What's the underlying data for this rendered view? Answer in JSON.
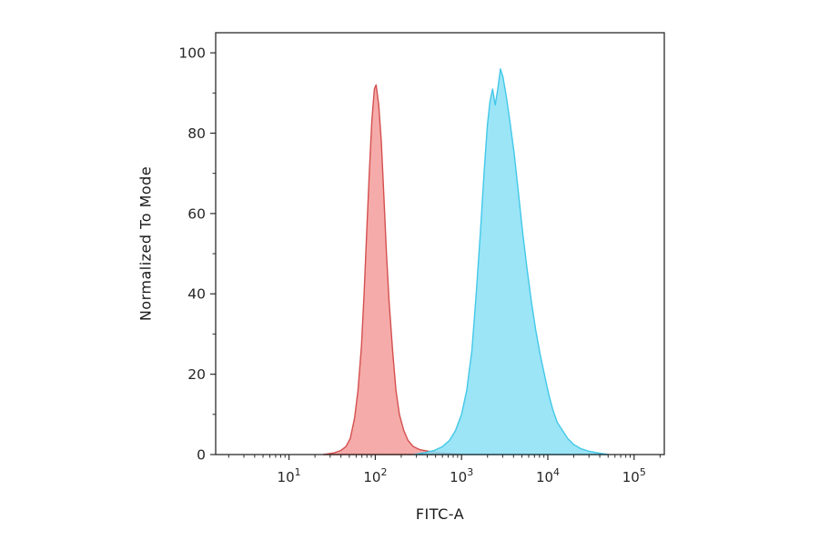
{
  "figure": {
    "background": "#ffffff",
    "axis_color": "#2b2b2b",
    "text_color": "#1a1a1a"
  },
  "chart_data": {
    "type": "area",
    "subtype": "flow-cytometry-histogram",
    "title": "",
    "xlabel": "FITC-A",
    "ylabel": "Normalized To Mode",
    "x_scale": "log",
    "xlim_log10": [
      0.15,
      5.35
    ],
    "ylim": [
      0,
      105
    ],
    "grid": false,
    "legend": "none",
    "x_ticks": [
      {
        "log10": 1,
        "mantissa": "10",
        "exponent": "1"
      },
      {
        "log10": 2,
        "mantissa": "10",
        "exponent": "2"
      },
      {
        "log10": 3,
        "mantissa": "10",
        "exponent": "3"
      },
      {
        "log10": 4,
        "mantissa": "10",
        "exponent": "4"
      },
      {
        "log10": 5,
        "mantissa": "10",
        "exponent": "5"
      }
    ],
    "y_ticks": [
      0,
      20,
      40,
      60,
      80,
      100
    ],
    "y_minor_ticks": [
      10,
      30,
      50,
      70,
      90
    ],
    "series": [
      {
        "name": "red-peak",
        "peak_log10x": 2.0,
        "peak_y": 92,
        "fill": "#F29694",
        "stroke": "#D44F4F",
        "fill_opacity": 0.8,
        "points": [
          [
            1.4,
            0
          ],
          [
            1.52,
            0.4
          ],
          [
            1.6,
            1
          ],
          [
            1.66,
            2
          ],
          [
            1.71,
            4
          ],
          [
            1.76,
            9
          ],
          [
            1.8,
            16
          ],
          [
            1.84,
            27
          ],
          [
            1.87,
            40
          ],
          [
            1.9,
            55
          ],
          [
            1.93,
            70
          ],
          [
            1.96,
            83
          ],
          [
            1.99,
            91
          ],
          [
            2.01,
            92
          ],
          [
            2.04,
            87
          ],
          [
            2.07,
            78
          ],
          [
            2.1,
            64
          ],
          [
            2.13,
            50
          ],
          [
            2.16,
            38
          ],
          [
            2.2,
            26
          ],
          [
            2.24,
            16
          ],
          [
            2.28,
            10
          ],
          [
            2.33,
            6
          ],
          [
            2.38,
            3.5
          ],
          [
            2.44,
            2
          ],
          [
            2.52,
            1.2
          ],
          [
            2.62,
            0.8
          ],
          [
            2.72,
            0.5
          ],
          [
            2.85,
            0.3
          ],
          [
            3.0,
            0
          ]
        ]
      },
      {
        "name": "cyan-peak",
        "peak_log10x": 3.45,
        "peak_y": 96,
        "fill": "#89E0F6",
        "stroke": "#43C8E8",
        "fill_opacity": 0.85,
        "points": [
          [
            2.45,
            0
          ],
          [
            2.58,
            0.5
          ],
          [
            2.68,
            1
          ],
          [
            2.78,
            2
          ],
          [
            2.86,
            3.5
          ],
          [
            2.93,
            6
          ],
          [
            3.0,
            10
          ],
          [
            3.06,
            16
          ],
          [
            3.12,
            26
          ],
          [
            3.17,
            40
          ],
          [
            3.22,
            56
          ],
          [
            3.26,
            70
          ],
          [
            3.3,
            82
          ],
          [
            3.33,
            88
          ],
          [
            3.36,
            91
          ],
          [
            3.39,
            87
          ],
          [
            3.42,
            91
          ],
          [
            3.45,
            96
          ],
          [
            3.48,
            94
          ],
          [
            3.52,
            89
          ],
          [
            3.56,
            83
          ],
          [
            3.61,
            75
          ],
          [
            3.66,
            65
          ],
          [
            3.71,
            55
          ],
          [
            3.76,
            46
          ],
          [
            3.81,
            38
          ],
          [
            3.86,
            31
          ],
          [
            3.91,
            25
          ],
          [
            3.96,
            20
          ],
          [
            4.01,
            15
          ],
          [
            4.06,
            11
          ],
          [
            4.11,
            8
          ],
          [
            4.17,
            6
          ],
          [
            4.23,
            4
          ],
          [
            4.3,
            2.5
          ],
          [
            4.38,
            1.5
          ],
          [
            4.48,
            0.8
          ],
          [
            4.58,
            0.4
          ],
          [
            4.7,
            0
          ]
        ]
      }
    ]
  }
}
